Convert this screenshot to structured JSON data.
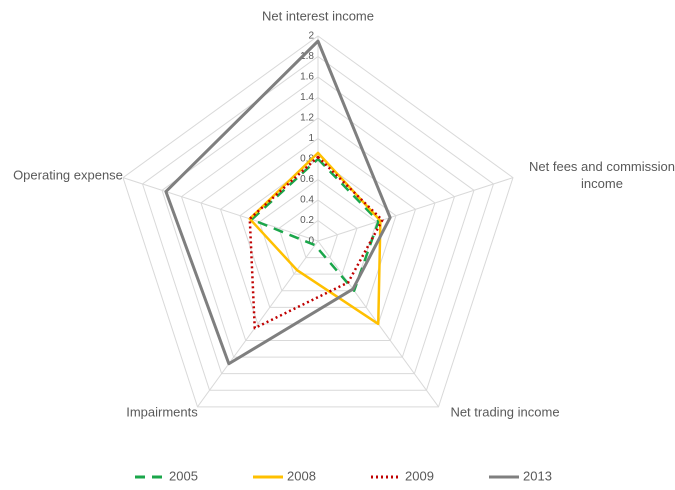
{
  "chart_data": {
    "type": "radar",
    "categories": [
      "Net interest income",
      "Net fees and commission income",
      "Net trading income",
      "Impairments",
      "Operating expense"
    ],
    "ylim": [
      0,
      2
    ],
    "yticks": [
      0,
      0.2,
      0.4,
      0.6,
      0.8,
      1,
      1.2,
      1.4,
      1.6,
      1.8,
      2
    ],
    "grid": true,
    "legend": "bottom",
    "series": [
      {
        "name": "2005",
        "color": "#1aa64a",
        "dash": "dashed",
        "values": [
          0.8,
          0.62,
          0.6,
          0.05,
          0.68
        ]
      },
      {
        "name": "2008",
        "color": "#ffc000",
        "dash": "solid",
        "values": [
          0.86,
          0.64,
          1.0,
          0.35,
          0.7
        ]
      },
      {
        "name": "2009",
        "color": "#c00000",
        "dash": "dotted",
        "values": [
          0.82,
          0.66,
          0.5,
          1.05,
          0.7
        ]
      },
      {
        "name": "2013",
        "color": "#7f7f7f",
        "dash": "solid",
        "values": [
          1.95,
          0.74,
          0.58,
          1.48,
          1.56
        ]
      }
    ]
  }
}
